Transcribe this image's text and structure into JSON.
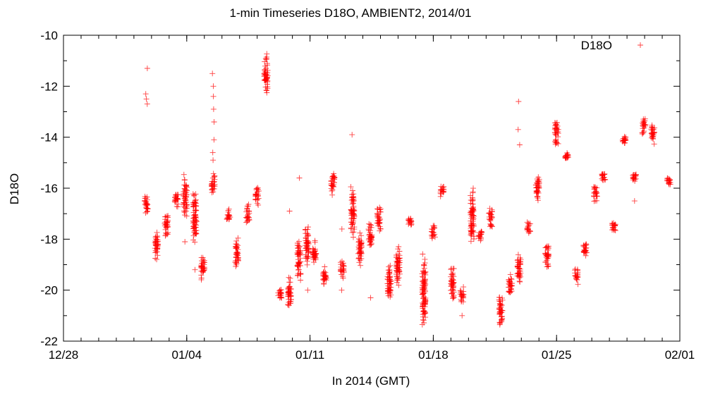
{
  "chart_data": {
    "type": "scatter",
    "title": "1-min Timeseries D18O, AMBIENT2, 2014/01",
    "xlabel": "In 2014 (GMT)",
    "ylabel": "D18O",
    "x_range_days": [
      "12/28",
      "02/01"
    ],
    "xlim": [
      "2013-12-28",
      "2014-02-01"
    ],
    "ylim": [
      -22,
      -10
    ],
    "x_ticks": [
      {
        "date": "2013-12-28",
        "label": "12/28"
      },
      {
        "date": "2014-01-04",
        "label": "01/04"
      },
      {
        "date": "2014-01-11",
        "label": "01/11"
      },
      {
        "date": "2014-01-18",
        "label": "01/18"
      },
      {
        "date": "2014-01-25",
        "label": "01/25"
      },
      {
        "date": "2014-02-01",
        "label": "02/01"
      }
    ],
    "y_ticks": [
      -10,
      -12,
      -14,
      -16,
      -18,
      -20,
      -22
    ],
    "y_tick_labels": [
      "-10",
      "-12",
      "-14",
      "-16",
      "-18",
      "-20",
      "-22"
    ],
    "grid": false,
    "legend_position": "top-right",
    "marker": "plus",
    "series": [
      {
        "name": "D18O",
        "color": "#ff0000",
        "clusters": [
          {
            "date": "2014-01-01 17:00",
            "y_min": -17.1,
            "y_max": -16.2,
            "outliers": [
              -11.3,
              -12.3,
              -12.5,
              -12.7
            ]
          },
          {
            "date": "2014-01-02 07:00",
            "y_min": -18.9,
            "y_max": -17.6
          },
          {
            "date": "2014-01-02 20:00",
            "y_min": -18.0,
            "y_max": -16.9
          },
          {
            "date": "2014-01-03 10:00",
            "y_min": -16.8,
            "y_max": -16.1
          },
          {
            "date": "2014-01-03 22:00",
            "y_min": -17.2,
            "y_max": -15.4,
            "outliers": [
              -18.1
            ]
          },
          {
            "date": "2014-01-04 11:00",
            "y_min": -18.4,
            "y_max": -16.1,
            "outliers": [
              -19.2
            ]
          },
          {
            "date": "2014-01-04 22:00",
            "y_min": -19.6,
            "y_max": -18.5
          },
          {
            "date": "2014-01-05 12:00",
            "y_min": -16.3,
            "y_max": -15.4,
            "outliers": [
              -11.5,
              -12.0,
              -12.4,
              -12.9,
              -13.4,
              -14.1,
              -14.6,
              -14.9
            ]
          },
          {
            "date": "2014-01-06 09:00",
            "y_min": -17.4,
            "y_max": -16.8
          },
          {
            "date": "2014-01-06 20:00",
            "y_min": -19.2,
            "y_max": -17.9
          },
          {
            "date": "2014-01-07 11:00",
            "y_min": -17.4,
            "y_max": -16.6
          },
          {
            "date": "2014-01-08 00:00",
            "y_min": -16.7,
            "y_max": -15.9
          },
          {
            "date": "2014-01-08 12:00",
            "y_min": -12.3,
            "y_max": -10.7
          },
          {
            "date": "2014-01-09 07:00",
            "y_min": -20.4,
            "y_max": -19.9
          },
          {
            "date": "2014-01-09 20:00",
            "y_min": -20.8,
            "y_max": -19.4,
            "outliers": [
              -16.9
            ]
          },
          {
            "date": "2014-01-10 09:00",
            "y_min": -19.7,
            "y_max": -18.0,
            "outliers": [
              -15.6
            ]
          },
          {
            "date": "2014-01-10 20:00",
            "y_min": -19.1,
            "y_max": -17.4,
            "outliers": [
              -20.0
            ]
          },
          {
            "date": "2014-01-11 06:00",
            "y_min": -19.1,
            "y_max": -18.0
          },
          {
            "date": "2014-01-11 20:00",
            "y_min": -19.9,
            "y_max": -19.0
          },
          {
            "date": "2014-01-12 07:00",
            "y_min": -16.3,
            "y_max": -15.3
          },
          {
            "date": "2014-01-12 20:00",
            "y_min": -19.6,
            "y_max": -18.8,
            "outliers": [
              -17.6,
              -20.0
            ]
          },
          {
            "date": "2014-01-13 10:00",
            "y_min": -18.0,
            "y_max": -15.9,
            "outliers": [
              -13.9
            ]
          },
          {
            "date": "2014-01-13 20:00",
            "y_min": -19.2,
            "y_max": -17.7
          },
          {
            "date": "2014-01-14 10:00",
            "y_min": -18.5,
            "y_max": -17.3,
            "outliers": [
              -20.3
            ]
          },
          {
            "date": "2014-01-14 22:00",
            "y_min": -17.8,
            "y_max": -16.7
          },
          {
            "date": "2014-01-15 12:00",
            "y_min": -20.6,
            "y_max": -18.9
          },
          {
            "date": "2014-01-16 00:00",
            "y_min": -20.0,
            "y_max": -18.1
          },
          {
            "date": "2014-01-16 16:00",
            "y_min": -17.5,
            "y_max": -17.1
          },
          {
            "date": "2014-01-17 11:00",
            "y_min": -21.6,
            "y_max": -18.4
          },
          {
            "date": "2014-01-18 00:00",
            "y_min": -18.1,
            "y_max": -17.4
          },
          {
            "date": "2014-01-18 12:00",
            "y_min": -16.4,
            "y_max": -15.8
          },
          {
            "date": "2014-01-19 02:00",
            "y_min": -20.6,
            "y_max": -19.0
          },
          {
            "date": "2014-01-19 15:00",
            "y_min": -20.5,
            "y_max": -19.8,
            "outliers": [
              -21.0
            ]
          },
          {
            "date": "2014-01-20 05:00",
            "y_min": -18.2,
            "y_max": -15.9
          },
          {
            "date": "2014-01-20 16:00",
            "y_min": -18.1,
            "y_max": -17.6
          },
          {
            "date": "2014-01-21 06:00",
            "y_min": -17.6,
            "y_max": -16.7
          },
          {
            "date": "2014-01-21 20:00",
            "y_min": -21.5,
            "y_max": -20.1
          },
          {
            "date": "2014-01-22 09:00",
            "y_min": -20.3,
            "y_max": -19.3
          },
          {
            "date": "2014-01-22 21:00",
            "y_min": -19.8,
            "y_max": -18.4,
            "outliers": [
              -14.3,
              -13.7,
              -12.6
            ]
          },
          {
            "date": "2014-01-23 10:00",
            "y_min": -17.8,
            "y_max": -17.3
          },
          {
            "date": "2014-01-23 22:00",
            "y_min": -16.6,
            "y_max": -15.4
          },
          {
            "date": "2014-01-24 11:00",
            "y_min": -19.2,
            "y_max": -18.0
          },
          {
            "date": "2014-01-25 00:00",
            "y_min": -14.5,
            "y_max": -13.3
          },
          {
            "date": "2014-01-25 14:00",
            "y_min": -14.9,
            "y_max": -14.6
          },
          {
            "date": "2014-01-26 03:00",
            "y_min": -19.8,
            "y_max": -19.1
          },
          {
            "date": "2014-01-26 15:00",
            "y_min": -18.8,
            "y_max": -18.0
          },
          {
            "date": "2014-01-27 05:00",
            "y_min": -16.6,
            "y_max": -15.8
          },
          {
            "date": "2014-01-27 16:00",
            "y_min": -15.8,
            "y_max": -15.3
          },
          {
            "date": "2014-01-28 06:00",
            "y_min": -17.7,
            "y_max": -17.3
          },
          {
            "date": "2014-01-28 20:00",
            "y_min": -14.3,
            "y_max": -13.9
          },
          {
            "date": "2014-01-29 10:00",
            "y_min": -15.8,
            "y_max": -15.4,
            "outliers": [
              -16.5
            ]
          },
          {
            "date": "2014-01-29 23:00",
            "y_min": -13.9,
            "y_max": -13.1
          },
          {
            "date": "2014-01-30 11:00",
            "y_min": -14.3,
            "y_max": -13.4
          },
          {
            "date": "2014-01-31 09:00",
            "y_min": -15.9,
            "y_max": -15.5
          }
        ]
      }
    ]
  }
}
